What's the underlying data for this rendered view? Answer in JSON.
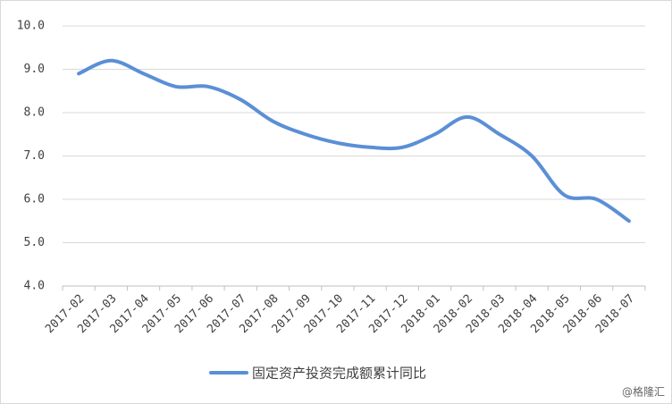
{
  "chart_data": {
    "type": "line",
    "categories": [
      "2017-02",
      "2017-03",
      "2017-04",
      "2017-05",
      "2017-06",
      "2017-07",
      "2017-08",
      "2017-09",
      "2017-10",
      "2017-11",
      "2017-12",
      "2018-01",
      "2018-02",
      "2018-03",
      "2018-04",
      "2018-05",
      "2018-06",
      "2018-07"
    ],
    "series": [
      {
        "name": "固定资产投资完成额累计同比",
        "color": "#5b8fd6",
        "values": [
          8.9,
          9.2,
          8.9,
          8.6,
          8.6,
          8.3,
          7.8,
          7.5,
          7.3,
          7.2,
          7.2,
          7.5,
          7.9,
          7.5,
          7.0,
          6.1,
          6.0,
          5.5
        ]
      }
    ],
    "ylim": [
      4,
      10
    ],
    "yticks": [
      {
        "value": 4,
        "label": "4.0"
      },
      {
        "value": 5,
        "label": "5.0"
      },
      {
        "value": 6,
        "label": "6.0"
      },
      {
        "value": 7,
        "label": "7.0"
      },
      {
        "value": 8,
        "label": "8.0"
      },
      {
        "value": 9,
        "label": "9.0"
      },
      {
        "value": 10,
        "label": "10.0"
      }
    ],
    "grid": true,
    "legend": "bottom",
    "watermark": "@格隆汇"
  }
}
